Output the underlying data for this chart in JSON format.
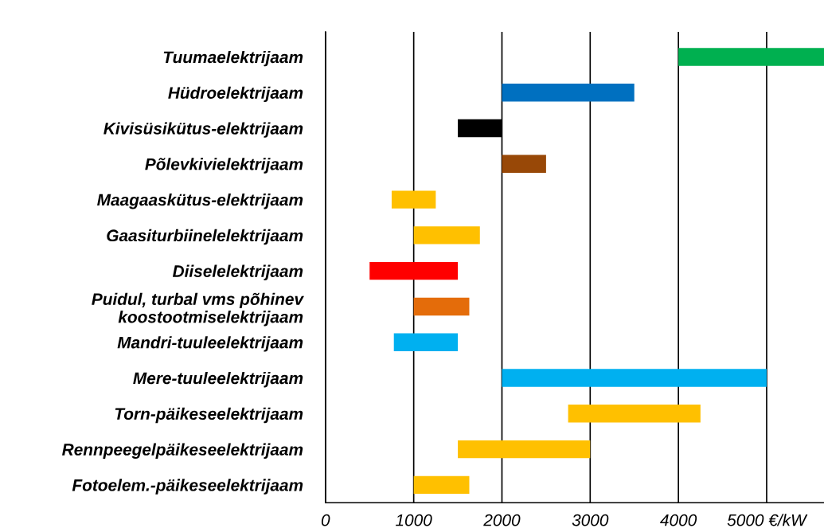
{
  "chart_data": {
    "type": "bar",
    "orientation": "horizontal",
    "categories": [
      "Tuumaelektrijaam",
      "Hüdroelektrijaam",
      "Kivisüsikütus-elektrijaam",
      "Põlevkivielektrijaam",
      "Maagaaskütus-elektrijaam",
      "Gaasiturbiinelelektrijaam",
      "Diiselelektrijaam",
      "Puidul, turbal vms põhinev\nkoostootmiselektrijaam",
      "Mandri-tuuleelektrijaam",
      "Mere-tuuleelektrijaam",
      "Torn-päikeseelektrijaam",
      "Rennpeegelpäikeseelektrijaam",
      "Fotoelem.-päikeseelektrijaam"
    ],
    "base": [
      4000,
      2000,
      1500,
      2000,
      750,
      1000,
      500,
      1000,
      775,
      2000,
      2750,
      1500,
      1000
    ],
    "values": [
      1650,
      1500,
      500,
      500,
      500,
      750,
      1000,
      630,
      725,
      3000,
      1500,
      1500,
      630
    ],
    "colors": [
      "#00b050",
      "#0070c0",
      "#000000",
      "#984807",
      "#ffc000",
      "#ffc000",
      "#ff0000",
      "#e46c0a",
      "#00b0f0",
      "#00b0f0",
      "#ffc000",
      "#ffc000",
      "#ffc000"
    ],
    "xlim": [
      0,
      5650
    ],
    "xticks": [
      0,
      1000,
      2000,
      3000,
      4000,
      {
        "value": 5000,
        "label": "5000 €/kW"
      }
    ],
    "grid": "x"
  }
}
